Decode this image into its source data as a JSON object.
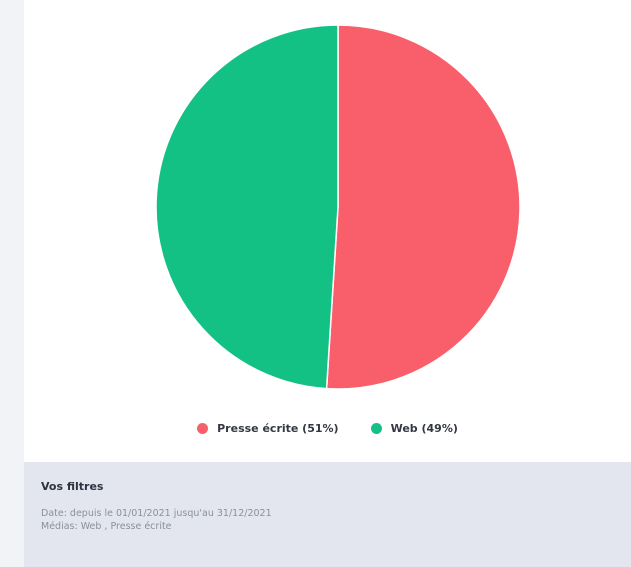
{
  "chart_data": {
    "type": "pie",
    "slices": [
      {
        "label": "Presse écrite (51%)",
        "value": 51,
        "color": "#f95f6a"
      },
      {
        "label": "Web (49%)",
        "value": 49,
        "color": "#13c184"
      }
    ],
    "legend_position": "bottom"
  },
  "filters": {
    "title": "Vos filtres",
    "date_line": "Date: depuis le 01/01/2021 jusqu'au 31/12/2021",
    "media_line": "Médias: Web , Presse écrite"
  }
}
